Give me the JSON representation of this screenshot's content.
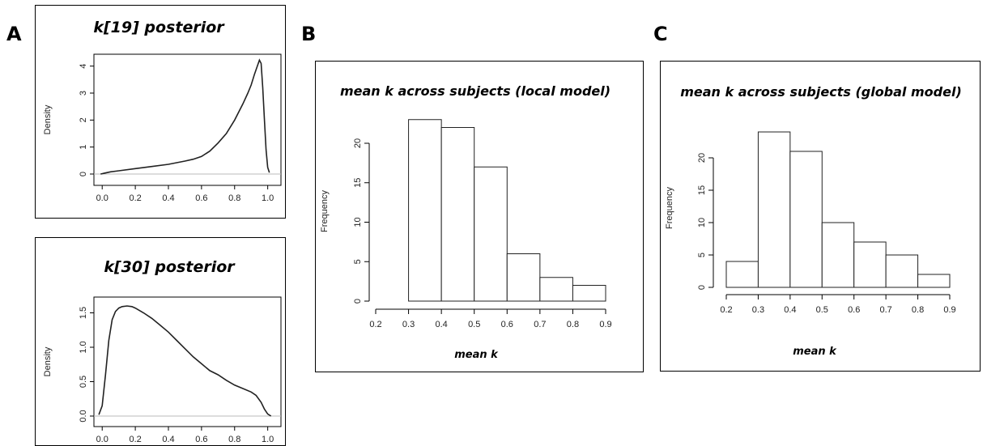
{
  "panels": [
    {
      "letter": "A"
    },
    {
      "letter": "B"
    },
    {
      "letter": "C"
    }
  ],
  "chart_data": [
    {
      "type": "line",
      "title": "k[19] posterior",
      "xlabel": "",
      "ylabel": "Density",
      "xlim": [
        -0.05,
        1.08
      ],
      "ylim": [
        0,
        4.2
      ],
      "xticks": [
        "0.0",
        "0.2",
        "0.4",
        "0.6",
        "0.8",
        "1.0"
      ],
      "yticks": [
        "0",
        "1",
        "2",
        "3",
        "4"
      ],
      "x": [
        -0.01,
        0.05,
        0.1,
        0.2,
        0.3,
        0.4,
        0.5,
        0.55,
        0.6,
        0.65,
        0.7,
        0.75,
        0.8,
        0.85,
        0.88,
        0.9,
        0.92,
        0.94,
        0.95,
        0.96,
        0.97,
        0.98,
        0.99,
        1.0,
        1.01
      ],
      "y": [
        0.0,
        0.08,
        0.12,
        0.2,
        0.28,
        0.36,
        0.48,
        0.55,
        0.65,
        0.85,
        1.15,
        1.5,
        2.0,
        2.6,
        3.0,
        3.3,
        3.7,
        4.05,
        4.22,
        4.1,
        3.2,
        2.0,
        0.9,
        0.25,
        0.05
      ]
    },
    {
      "type": "line",
      "title": "k[30] posterior",
      "xlabel": "",
      "ylabel": "Density",
      "xlim": [
        -0.05,
        1.08
      ],
      "ylim": [
        0,
        1.6
      ],
      "xticks": [
        "0.0",
        "0.2",
        "0.4",
        "0.6",
        "0.8",
        "1.0"
      ],
      "yticks": [
        "0.0",
        "0.5",
        "1.0",
        "1.5"
      ],
      "x": [
        -0.02,
        0.0,
        0.02,
        0.04,
        0.06,
        0.08,
        0.1,
        0.12,
        0.15,
        0.18,
        0.2,
        0.25,
        0.3,
        0.35,
        0.4,
        0.45,
        0.5,
        0.55,
        0.6,
        0.65,
        0.7,
        0.75,
        0.8,
        0.85,
        0.9,
        0.93,
        0.96,
        0.98,
        1.0,
        1.02
      ],
      "y": [
        0.02,
        0.15,
        0.6,
        1.1,
        1.4,
        1.52,
        1.57,
        1.59,
        1.6,
        1.59,
        1.57,
        1.5,
        1.42,
        1.32,
        1.22,
        1.1,
        0.98,
        0.86,
        0.76,
        0.66,
        0.6,
        0.52,
        0.45,
        0.4,
        0.35,
        0.3,
        0.2,
        0.1,
        0.03,
        0.0
      ]
    },
    {
      "type": "bar",
      "title": "mean k across subjects (local model)",
      "xlabel": "mean k",
      "ylabel": "Frequency",
      "bins": [
        [
          0.3,
          0.4
        ],
        [
          0.4,
          0.5
        ],
        [
          0.5,
          0.6
        ],
        [
          0.6,
          0.7
        ],
        [
          0.7,
          0.8
        ],
        [
          0.8,
          0.9
        ]
      ],
      "values": [
        23,
        22,
        17,
        6,
        3,
        2
      ],
      "xlim": [
        0.2,
        0.9
      ],
      "ylim": [
        0,
        20
      ],
      "xticks": [
        "0.2",
        "0.3",
        "0.4",
        "0.5",
        "0.6",
        "0.7",
        "0.8",
        "0.9"
      ],
      "yticks": [
        "0",
        "5",
        "10",
        "15",
        "20"
      ]
    },
    {
      "type": "bar",
      "title": "mean k across subjects (global model)",
      "xlabel": "mean k",
      "ylabel": "Frequency",
      "bins": [
        [
          0.2,
          0.3
        ],
        [
          0.3,
          0.4
        ],
        [
          0.4,
          0.5
        ],
        [
          0.5,
          0.6
        ],
        [
          0.6,
          0.7
        ],
        [
          0.7,
          0.8
        ],
        [
          0.8,
          0.9
        ]
      ],
      "values": [
        4,
        24,
        21,
        10,
        7,
        5,
        2
      ],
      "xlim": [
        0.2,
        0.9
      ],
      "ylim": [
        0,
        20
      ],
      "xticks": [
        "0.2",
        "0.3",
        "0.4",
        "0.5",
        "0.6",
        "0.7",
        "0.8",
        "0.9"
      ],
      "yticks": [
        "0",
        "5",
        "10",
        "15",
        "20"
      ]
    }
  ]
}
